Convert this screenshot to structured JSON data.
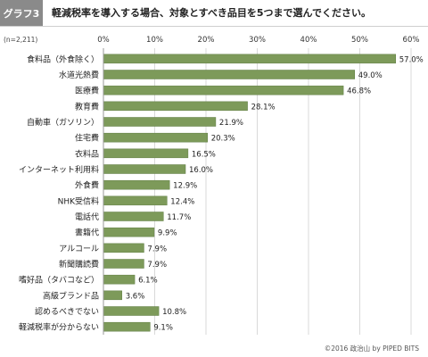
{
  "header": {
    "tag": "グラフ3",
    "title": "軽減税率を導入する場合、対象とすべき品目を5つまで選んでください。"
  },
  "footer": {
    "copyright": "©2016 政治山 by PIPED BITS"
  },
  "chart_data": {
    "type": "bar",
    "orientation": "horizontal",
    "sample_note": "(n=2,211)",
    "categories": [
      "食料品（外食除く）",
      "水道光熱費",
      "医療費",
      "教育費",
      "自動車（ガソリン）",
      "住宅費",
      "衣料品",
      "インターネット利用料",
      "外食費",
      "NHK受信料",
      "電話代",
      "書籍代",
      "アルコール",
      "新聞購読費",
      "嗜好品（タバコなど）",
      "高級ブランド品",
      "認めるべきでない",
      "軽減税率が分からない"
    ],
    "values": [
      57.0,
      49.0,
      46.8,
      28.1,
      21.9,
      20.3,
      16.5,
      16.0,
      12.9,
      12.4,
      11.7,
      9.9,
      7.9,
      7.9,
      6.1,
      3.6,
      10.8,
      9.1
    ],
    "value_labels": [
      "57.0%",
      "49.0%",
      "46.8%",
      "28.1%",
      "21.9%",
      "20.3%",
      "16.5%",
      "16.0%",
      "12.9%",
      "12.4%",
      "11.7%",
      "9.9%",
      "7.9%",
      "7.9%",
      "6.1%",
      "3.6%",
      "10.8%",
      "9.1%"
    ],
    "xlim": [
      0,
      60
    ],
    "xticks": [
      0,
      10,
      20,
      30,
      40,
      50,
      60
    ],
    "xtick_labels": [
      "0%",
      "10%",
      "20%",
      "30%",
      "40%",
      "50%",
      "60%"
    ],
    "grid": true,
    "colors": {
      "bar": "#7d9a5a",
      "bar_stroke": "#5f7d42",
      "grid": "#d9d9d9"
    }
  }
}
